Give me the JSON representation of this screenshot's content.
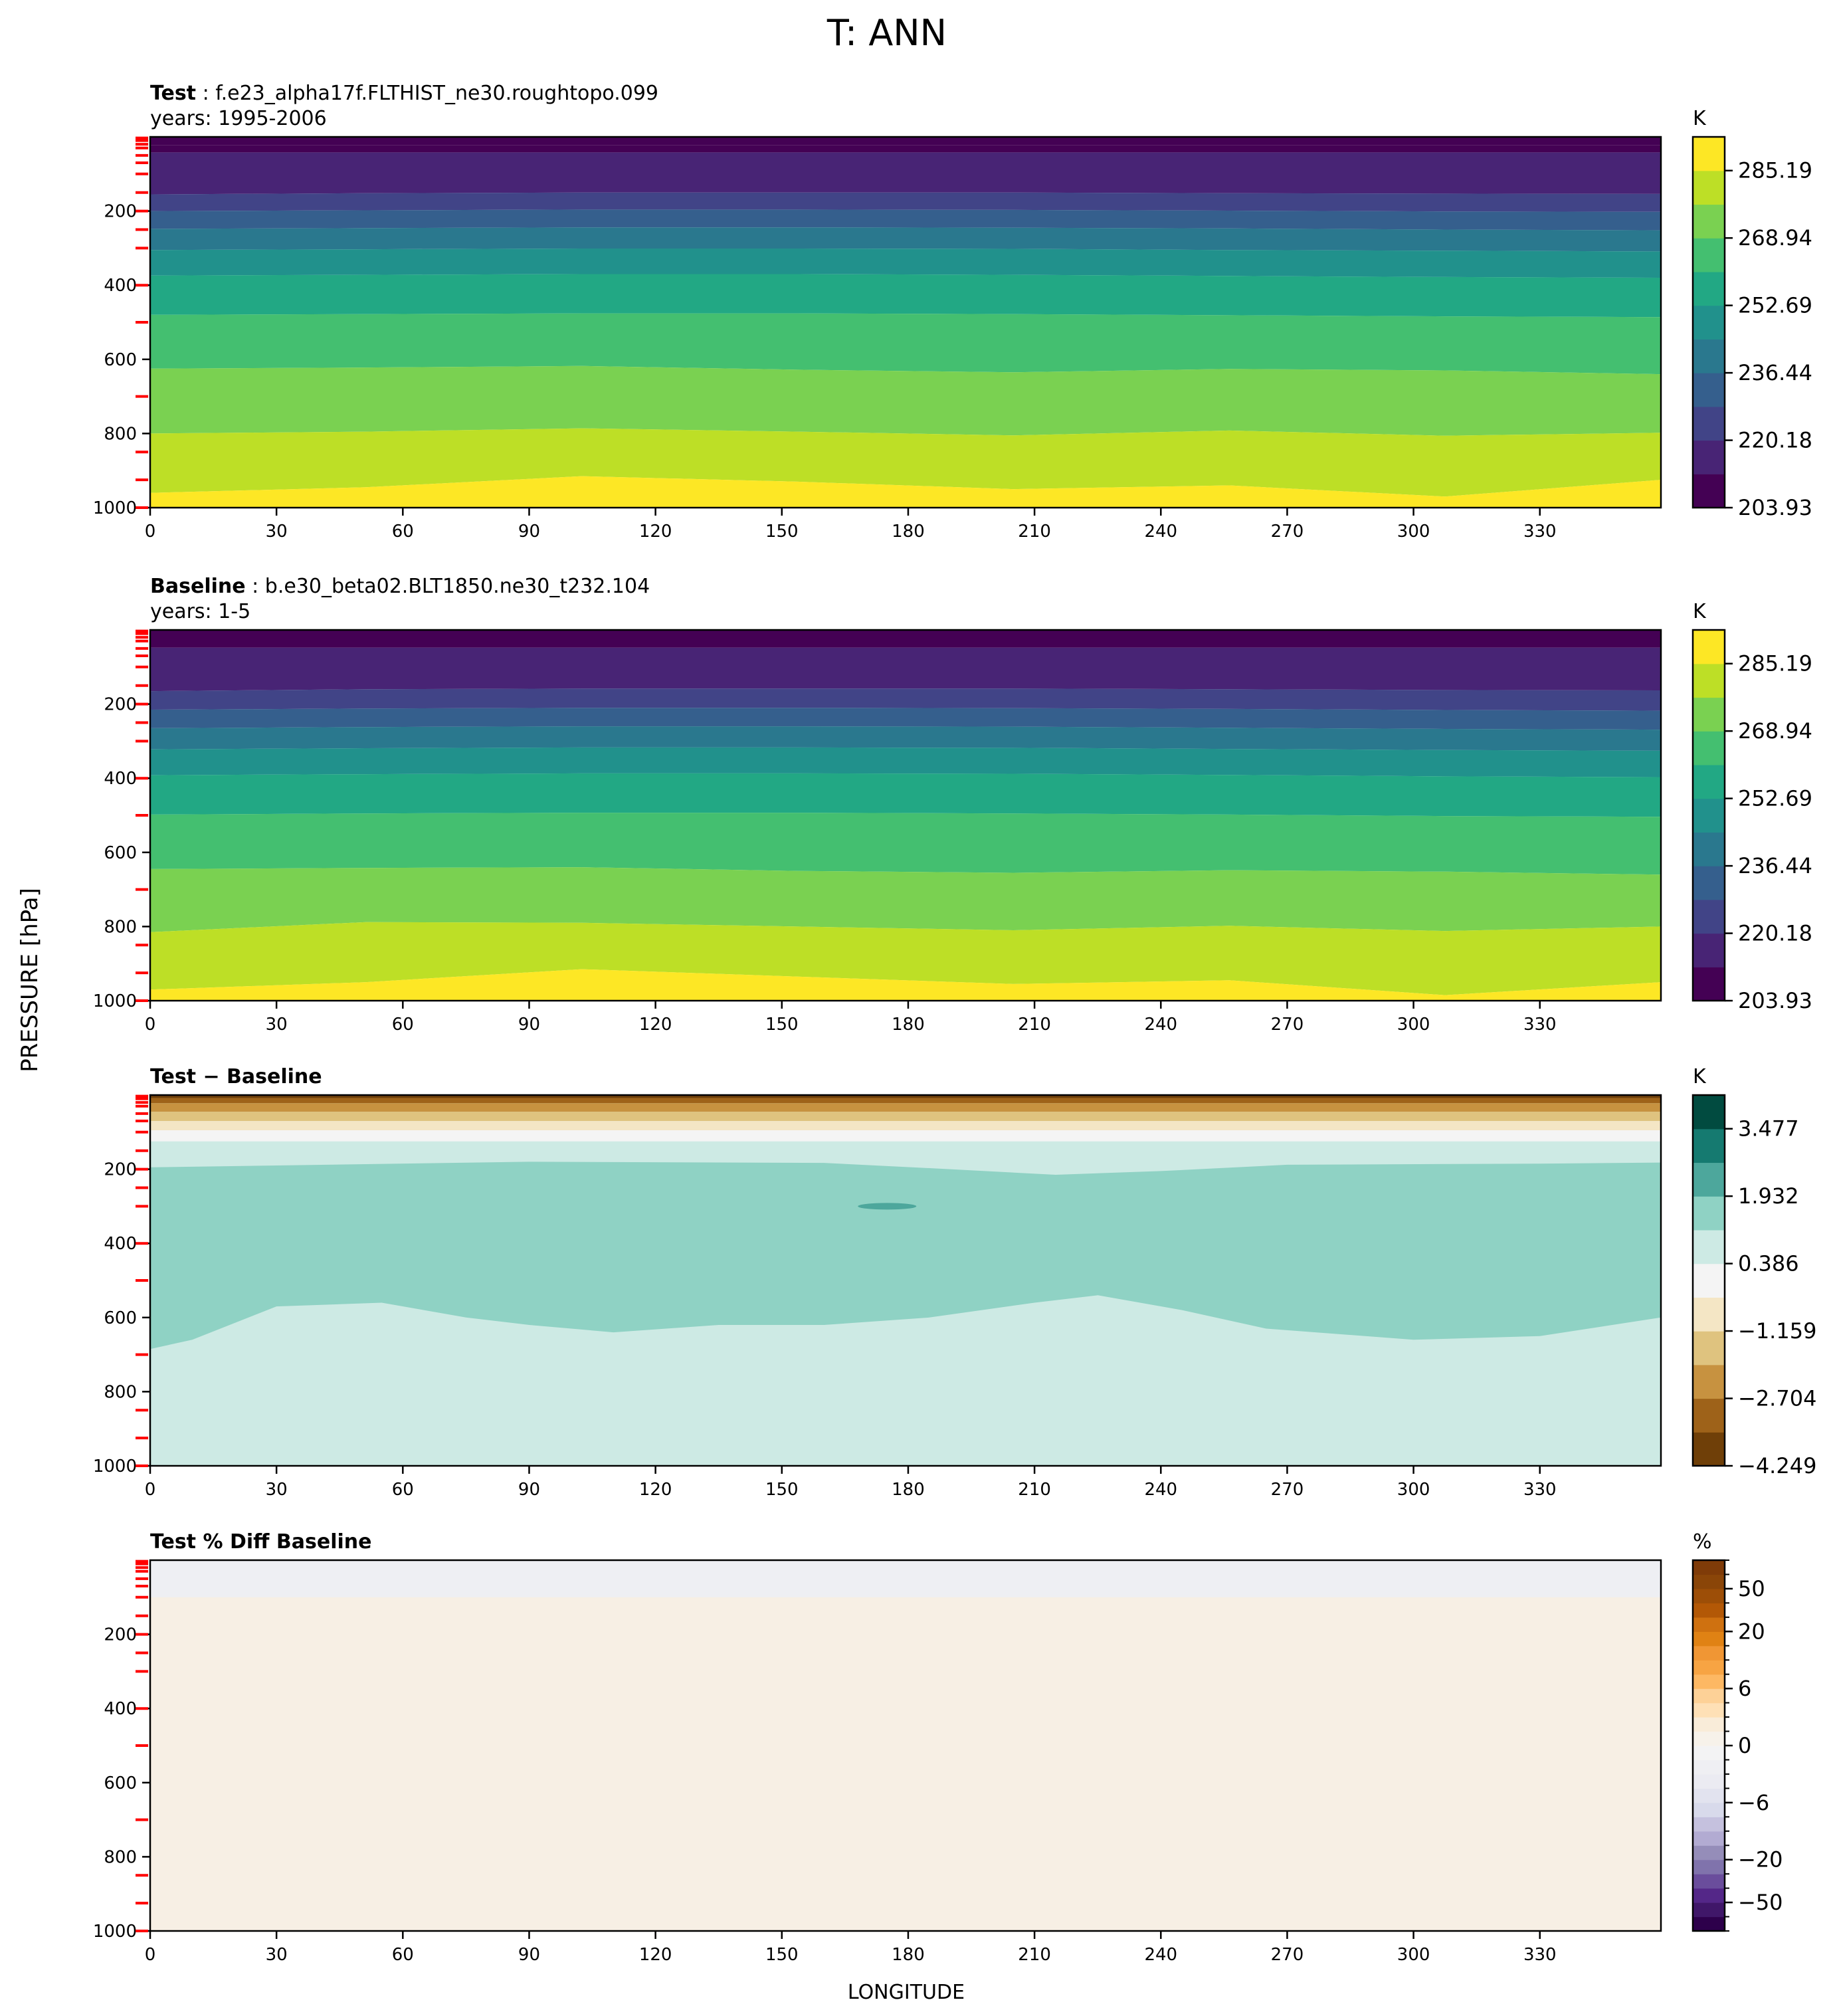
{
  "figure": {
    "title": "T: ANN",
    "ylabel": "PRESSURE [hPa]",
    "xlabel": "LONGITUDE"
  },
  "chart_data": [
    {
      "type": "heatmap",
      "panel": "test",
      "title_bold": "Test",
      "title_rest": ": f.e23_alpha17f.FLTHIST_ne30.roughtopo.099",
      "subtitle": "years: 1995-2006",
      "xlim": [
        0,
        358.75
      ],
      "ylim": [
        1000,
        0
      ],
      "xticks": [
        0,
        30,
        60,
        90,
        120,
        150,
        180,
        210,
        240,
        270,
        300,
        330
      ],
      "yticks": [
        200,
        400,
        600,
        800,
        1000
      ],
      "model_levels": [
        3,
        7,
        10,
        20,
        30,
        50,
        70,
        100,
        150,
        200,
        250,
        300,
        400,
        500,
        700,
        850,
        925,
        1000
      ],
      "colorbar": {
        "unit": "K",
        "cmap": "viridis",
        "ticklabels": [
          "203.93",
          "220.18",
          "236.44",
          "252.69",
          "268.94",
          "285.19"
        ],
        "levels": [
          203.93,
          212.06,
          220.18,
          228.31,
          236.44,
          244.56,
          252.69,
          260.81,
          268.94,
          277.07,
          285.19,
          293.32
        ],
        "colors": [
          "#440154",
          "#482475",
          "#414487",
          "#355f8d",
          "#2a788e",
          "#21918c",
          "#22a884",
          "#44bf70",
          "#7ad151",
          "#bddf26",
          "#fde725"
        ]
      },
      "boundaries_hPa": [
        [
          23,
          23
        ],
        [
          42,
          42
        ],
        [
          155,
          152,
          150,
          150,
          150,
          152,
          153,
          154
        ],
        [
          200,
          198,
          196,
          196,
          197,
          199,
          201,
          202
        ],
        [
          248,
          246,
          244,
          244,
          245,
          247,
          250,
          252
        ],
        [
          305,
          303,
          301,
          301,
          302,
          305,
          307,
          309
        ],
        [
          374,
          372,
          370,
          370,
          372,
          375,
          378,
          380
        ],
        [
          480,
          478,
          476,
          476,
          478,
          481,
          484,
          486
        ],
        [
          625,
          622,
          618,
          628,
          635,
          626,
          630,
          640
        ],
        [
          800,
          795,
          786,
          795,
          805,
          792,
          806,
          798
        ],
        [
          960,
          945,
          915,
          930,
          950,
          940,
          970,
          925
        ]
      ]
    },
    {
      "type": "heatmap",
      "panel": "baseline",
      "title_bold": "Baseline",
      "title_rest": ": b.e30_beta02.BLT1850.ne30_t232.104",
      "subtitle": "years: 1-5",
      "xlim": [
        0,
        358.75
      ],
      "ylim": [
        1000,
        0
      ],
      "xticks": [
        0,
        30,
        60,
        90,
        120,
        150,
        180,
        210,
        240,
        270,
        300,
        330
      ],
      "yticks": [
        200,
        400,
        600,
        800,
        1000
      ],
      "model_levels": [
        3,
        7,
        10,
        20,
        30,
        50,
        70,
        100,
        150,
        200,
        250,
        300,
        400,
        500,
        700,
        850,
        925,
        1000
      ],
      "colorbar": {
        "unit": "K",
        "cmap": "viridis",
        "ticklabels": [
          "203.93",
          "220.18",
          "236.44",
          "252.69",
          "268.94",
          "285.19"
        ],
        "levels": [
          203.93,
          212.06,
          220.18,
          228.31,
          236.44,
          244.56,
          252.69,
          260.81,
          268.94,
          277.07,
          285.19,
          293.32
        ],
        "colors": [
          "#440154",
          "#482475",
          "#414487",
          "#355f8d",
          "#2a788e",
          "#21918c",
          "#22a884",
          "#44bf70",
          "#7ad151",
          "#bddf26",
          "#fde725"
        ]
      },
      "boundaries_hPa": [
        [
          25,
          25
        ],
        [
          48,
          48
        ],
        [
          165,
          160,
          158,
          158,
          158,
          160,
          162,
          163
        ],
        [
          215,
          212,
          210,
          210,
          211,
          213,
          216,
          218
        ],
        [
          265,
          262,
          260,
          260,
          261,
          264,
          267,
          269
        ],
        [
          322,
          319,
          317,
          317,
          318,
          321,
          324,
          326
        ],
        [
          392,
          389,
          387,
          387,
          388,
          391,
          395,
          397
        ],
        [
          498,
          495,
          493,
          493,
          495,
          498,
          502,
          504
        ],
        [
          645,
          642,
          640,
          650,
          655,
          648,
          652,
          660
        ],
        [
          815,
          788,
          790,
          800,
          810,
          798,
          812,
          800
        ],
        [
          970,
          950,
          915,
          935,
          955,
          945,
          985,
          950
        ]
      ]
    },
    {
      "type": "heatmap",
      "panel": "diff",
      "title_bold": "Test − Baseline",
      "title_rest": "",
      "subtitle": "",
      "xlim": [
        0,
        358.75
      ],
      "ylim": [
        1000,
        0
      ],
      "xticks": [
        0,
        30,
        60,
        90,
        120,
        150,
        180,
        210,
        240,
        270,
        300,
        330
      ],
      "yticks": [
        200,
        400,
        600,
        800,
        1000
      ],
      "model_levels": [
        3,
        7,
        10,
        20,
        30,
        50,
        70,
        100,
        150,
        200,
        250,
        300,
        400,
        500,
        700,
        850,
        925,
        1000
      ],
      "colorbar": {
        "unit": "K",
        "cmap": "BrBG",
        "ticklabels": [
          "−4.249",
          "−2.704",
          "−1.159",
          "0.386",
          "1.932",
          "3.477"
        ],
        "levels": [
          -4.249,
          -3.476,
          -2.704,
          -1.932,
          -1.159,
          -0.386,
          0.386,
          1.159,
          1.932,
          2.704,
          3.477,
          4.249
        ],
        "colors": [
          "#6f3f08",
          "#9e6219",
          "#c79240",
          "#dfc37f",
          "#f4e6c5",
          "#f4f4f4",
          "#cdeae4",
          "#8fd2c4",
          "#4da79c",
          "#157a70",
          "#014b40"
        ]
      },
      "background_band": 6,
      "strat_bands": [
        {
          "band": 0,
          "top": 0,
          "bottom": 8
        },
        {
          "band": 1,
          "top": 8,
          "bottom": 22
        },
        {
          "band": 2,
          "top": 22,
          "bottom": 45
        },
        {
          "band": 3,
          "top": 45,
          "bottom": 70
        },
        {
          "band": 4,
          "top": 70,
          "bottom": 95
        },
        {
          "band": 5,
          "top": 95,
          "bottom": 125
        }
      ],
      "warm_region": {
        "band": 7,
        "top_hPa": [
          [
            0,
            195
          ],
          [
            30,
            190
          ],
          [
            90,
            180
          ],
          [
            160,
            183
          ],
          [
            190,
            200
          ],
          [
            215,
            215
          ],
          [
            240,
            205
          ],
          [
            270,
            188
          ],
          [
            330,
            185
          ],
          [
            358.75,
            182
          ]
        ],
        "bottom_hPa": [
          [
            0,
            685
          ],
          [
            10,
            660
          ],
          [
            30,
            570
          ],
          [
            55,
            560
          ],
          [
            75,
            600
          ],
          [
            90,
            620
          ],
          [
            110,
            640
          ],
          [
            135,
            620
          ],
          [
            160,
            620
          ],
          [
            185,
            600
          ],
          [
            210,
            560
          ],
          [
            225,
            540
          ],
          [
            245,
            580
          ],
          [
            265,
            630
          ],
          [
            300,
            660
          ],
          [
            330,
            650
          ],
          [
            358.75,
            600
          ]
        ],
        "bottom_extent_hPa": 1000,
        "lower_cool_region_hPa": [
          [
            0,
            700
          ],
          [
            358.75,
            700
          ]
        ]
      },
      "spot": {
        "band": 8,
        "lon": 175,
        "pressure": 300
      }
    },
    {
      "type": "heatmap",
      "panel": "pctdiff",
      "title_bold": "Test % Diff Baseline",
      "title_rest": "",
      "subtitle": "",
      "xlim": [
        0,
        358.75
      ],
      "ylim": [
        1000,
        0
      ],
      "xticks": [
        0,
        30,
        60,
        90,
        120,
        150,
        180,
        210,
        240,
        270,
        300,
        330
      ],
      "yticks": [
        200,
        400,
        600,
        800,
        1000
      ],
      "model_levels": [
        3,
        7,
        10,
        20,
        30,
        50,
        70,
        100,
        150,
        200,
        250,
        300,
        400,
        500,
        700,
        850,
        925,
        1000
      ],
      "colorbar": {
        "unit": "%",
        "cmap": "PuOr_r",
        "ticklabels": [
          "−50",
          "−20",
          "−6",
          "0",
          "6",
          "20",
          "50"
        ],
        "tickvalues": [
          -50,
          -20,
          -6,
          0,
          6,
          20,
          50
        ],
        "levels": [
          -100,
          -75,
          -50,
          -40,
          -30,
          -20,
          -15,
          -10,
          -8,
          -6,
          -4,
          -2,
          -1,
          0,
          1,
          2,
          4,
          6,
          8,
          10,
          15,
          20,
          30,
          40,
          50,
          75,
          100
        ],
        "colors": [
          "#2d004b",
          "#401769",
          "#542788",
          "#6a4d9c",
          "#8073ac",
          "#958db9",
          "#b2abd2",
          "#c5c1de",
          "#d8daeb",
          "#e2e3ef",
          "#ebebf2",
          "#efeff3",
          "#f3f3f4",
          "#f7f2ea",
          "#f9ecd9",
          "#fee0b6",
          "#fdd197",
          "#fdb863",
          "#f7a443",
          "#f09634",
          "#e08214",
          "#cf7110",
          "#b35806",
          "#9d4e07",
          "#8a4508",
          "#7f3b08"
        ]
      },
      "background_color": "#f7efe4",
      "top_band": {
        "color": "#eeeff3",
        "top": 0,
        "bottom": 100
      }
    }
  ]
}
